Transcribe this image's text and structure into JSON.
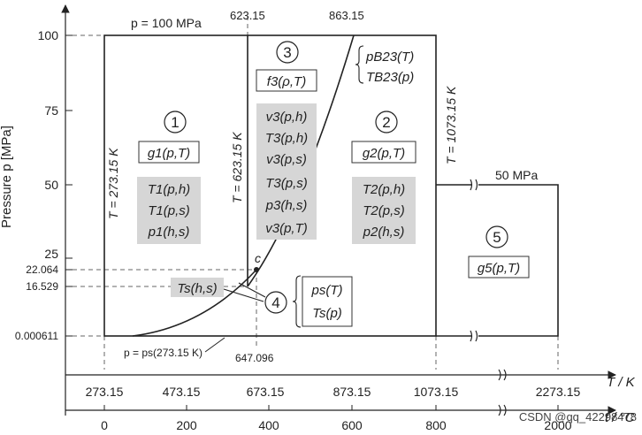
{
  "axes": {
    "y_label": "Pressure p [MPa]",
    "y_ticks": [
      "100",
      "75",
      "50",
      "25",
      "22.064",
      "16.529",
      "0.000611"
    ],
    "x_label": "T / K",
    "x_ticks_K": [
      "273.15",
      "473.15",
      "673.15",
      "873.15",
      "1073.15",
      "2273.15"
    ],
    "x_label_C": "t / °C",
    "x_ticks_C": [
      "0",
      "200",
      "400",
      "600",
      "800",
      "2000"
    ],
    "top_labels": [
      "623.15",
      "863.15"
    ],
    "bottom_label": "647.096"
  },
  "annotations": {
    "p100": "p = 100 MPa",
    "p50": "50 MPa",
    "T273": "T = 273.15 K",
    "T623a": "T = 623.15 K",
    "T623b": "T = 623.15 K",
    "T1073": "T = 1073.15 K",
    "ps_line": "p = ps(273.15 K)",
    "critical": "c"
  },
  "regions": {
    "r1": {
      "num": "1",
      "fundamental": "g1(p,T)",
      "backward": [
        "T1(p,h)",
        "T1(p,s)",
        "p1(h,s)"
      ]
    },
    "r2": {
      "num": "2",
      "fundamental": "g2(p,T)",
      "backward": [
        "T2(p,h)",
        "T2(p,s)",
        "p2(h,s)"
      ]
    },
    "r3": {
      "num": "3",
      "fundamental": "f3(ρ,T)",
      "backward": [
        "v3(p,h)",
        "T3(p,h)",
        "v3(p,s)",
        "T3(p,s)",
        "p3(h,s)",
        "v3(p,T)"
      ]
    },
    "r4": {
      "num": "4",
      "equations": [
        "ps(T)",
        "Ts(p)"
      ],
      "backward": "Ts(h,s)"
    },
    "r5": {
      "num": "5",
      "fundamental": "g5(p,T)"
    },
    "b23": [
      "pB23(T)",
      "TB23(p)"
    ]
  },
  "watermark": "CSDN @qq_42298478"
}
